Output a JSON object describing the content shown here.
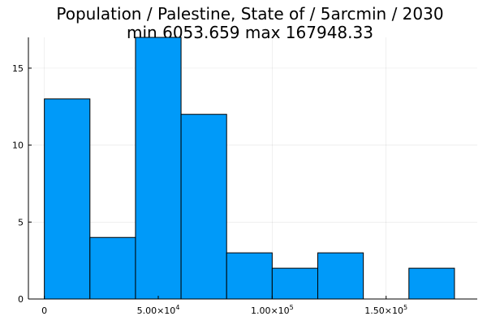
{
  "chart_data": {
    "type": "bar",
    "title": "Population / Palestine, State of / 5arcmin / 2030",
    "subtitle": "min 6053.659  max 167948.33",
    "bins": [
      {
        "x0": 0,
        "x1": 20000,
        "count": 13
      },
      {
        "x0": 20000,
        "x1": 40000,
        "count": 4
      },
      {
        "x0": 40000,
        "x1": 60000,
        "count": 17
      },
      {
        "x0": 60000,
        "x1": 80000,
        "count": 12
      },
      {
        "x0": 80000,
        "x1": 100000,
        "count": 3
      },
      {
        "x0": 100000,
        "x1": 120000,
        "count": 2
      },
      {
        "x0": 120000,
        "x1": 140000,
        "count": 3
      },
      {
        "x0": 140000,
        "x1": 160000,
        "count": 0
      },
      {
        "x0": 160000,
        "x1": 180000,
        "count": 2
      }
    ],
    "xlim": [
      -7000,
      190000
    ],
    "ylim": [
      0,
      17
    ],
    "x_ticks": [
      {
        "value": 0,
        "base": "0",
        "exp": ""
      },
      {
        "value": 50000,
        "base": "5.00×10",
        "exp": "4"
      },
      {
        "value": 100000,
        "base": "1.00×10",
        "exp": "5"
      },
      {
        "value": 150000,
        "base": "1.50×10",
        "exp": "5"
      }
    ],
    "y_ticks": [
      {
        "value": 0,
        "label": "0"
      },
      {
        "value": 5,
        "label": "5"
      },
      {
        "value": 10,
        "label": "10"
      },
      {
        "value": 15,
        "label": "15"
      }
    ],
    "grid": true,
    "legend": "none",
    "bar_color": "#009af9"
  }
}
